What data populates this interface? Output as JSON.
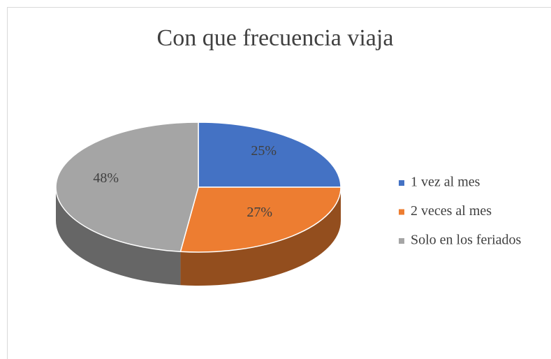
{
  "chart_data": {
    "type": "pie",
    "title": "Con que frecuencia viaja",
    "categories": [
      "1 vez al mes",
      "2 veces al mes",
      "Solo en los feriados"
    ],
    "values": [
      25,
      27,
      48
    ],
    "value_labels": [
      "25%",
      "27%",
      "48%"
    ],
    "colors": [
      "#4472c4",
      "#ed7d31",
      "#a5a5a5"
    ],
    "legend": "right"
  }
}
